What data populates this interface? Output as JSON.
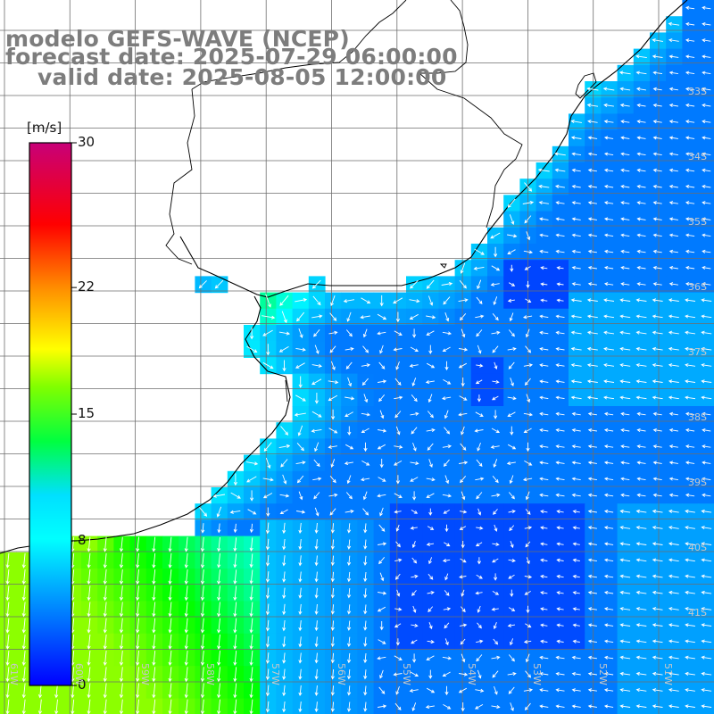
{
  "title": {
    "line1": "modelo GEFS-WAVE (NCEP)",
    "line2": "forecast date: 2025-07-29 06:00:00",
    "line3": "valid date: 2025-08-05 12:00:00"
  },
  "colorbar": {
    "unit": "[m/s]",
    "ticks": [
      {
        "label": "30",
        "value": 30
      },
      {
        "label": "22",
        "value": 22
      },
      {
        "label": "15",
        "value": 15
      },
      {
        "label": "8",
        "value": 8
      },
      {
        "label": "0",
        "value": 0
      }
    ],
    "gradient": [
      "#0000ff",
      "#00ffff",
      "#00ff00",
      "#ffff00",
      "#ff0000",
      "#c80078"
    ]
  },
  "lon_labels": [
    "61W",
    "60W",
    "59W",
    "58W",
    "57W",
    "56W",
    "55W",
    "54W",
    "53W",
    "52W",
    "51W"
  ],
  "lat_labels": [
    "33S",
    "34S",
    "35S",
    "36S",
    "37S",
    "38S",
    "39S",
    "40S",
    "41S"
  ],
  "colors": {
    "land": "#ffffff",
    "coast": "#000000",
    "grid": "#6e6e6e",
    "arrow": "#ffffff",
    "title": "#7d7d7d"
  }
}
